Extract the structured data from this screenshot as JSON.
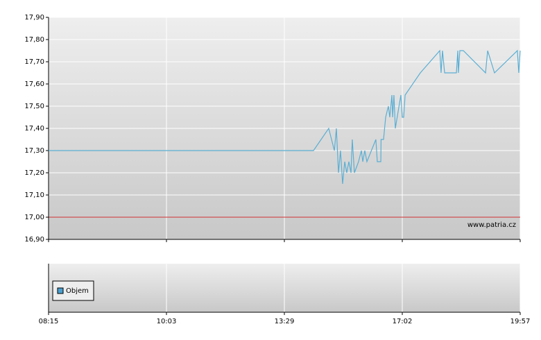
{
  "chart_data": {
    "type": "line",
    "x": [
      0,
      2.247,
      2.376,
      2.424,
      2.441,
      2.459,
      2.476,
      2.494,
      2.512,
      2.529,
      2.547,
      2.565,
      2.576,
      2.594,
      2.629,
      2.653,
      2.665,
      2.682,
      2.7,
      2.776,
      2.788,
      2.818,
      2.82,
      2.841,
      2.859,
      2.882,
      2.894,
      2.912,
      2.918,
      2.929,
      2.941,
      2.988,
      3.0,
      3.012,
      3.024,
      3.153,
      3.318,
      3.329,
      3.341,
      3.359,
      3.459,
      3.471,
      3.476,
      3.488,
      3.518,
      3.706,
      3.724,
      3.782,
      3.976,
      3.988,
      4.0
    ],
    "series": [
      {
        "color": "#5aaed3",
        "values": [
          17.3,
          17.3,
          17.4,
          17.3,
          17.4,
          17.2,
          17.3,
          17.15,
          17.25,
          17.2,
          17.25,
          17.2,
          17.35,
          17.2,
          17.25,
          17.3,
          17.25,
          17.3,
          17.25,
          17.35,
          17.25,
          17.25,
          17.35,
          17.35,
          17.45,
          17.5,
          17.45,
          17.55,
          17.45,
          17.55,
          17.4,
          17.55,
          17.45,
          17.45,
          17.55,
          17.65,
          17.75,
          17.65,
          17.75,
          17.65,
          17.65,
          17.75,
          17.65,
          17.75,
          17.75,
          17.65,
          17.75,
          17.65,
          17.75,
          17.65,
          17.75
        ]
      }
    ],
    "xlim": [
      0,
      4
    ],
    "xticks": [
      {
        "value": 0,
        "label": "08:15"
      },
      {
        "value": 1,
        "label": "10:03"
      },
      {
        "value": 2,
        "label": "13:29"
      },
      {
        "value": 3,
        "label": "17:02"
      },
      {
        "value": 4,
        "label": "19:57"
      }
    ],
    "ylim": [
      16.9,
      17.9
    ],
    "yticks": [
      {
        "value": 16.9,
        "label": "16,90"
      },
      {
        "value": 17.0,
        "label": "17,00"
      },
      {
        "value": 17.1,
        "label": "17,10"
      },
      {
        "value": 17.2,
        "label": "17,20"
      },
      {
        "value": 17.3,
        "label": "17,30"
      },
      {
        "value": 17.4,
        "label": "17,40"
      },
      {
        "value": 17.5,
        "label": "17,50"
      },
      {
        "value": 17.6,
        "label": "17,60"
      },
      {
        "value": 17.7,
        "label": "17,70"
      },
      {
        "value": 17.8,
        "label": "17,80"
      },
      {
        "value": 17.9,
        "label": "17,90"
      }
    ],
    "reference_line": {
      "value": 17.0,
      "color": "#d03030"
    },
    "annotation": "www.patria.cz",
    "volume_legend": {
      "name": "Objem",
      "color": "#4a9fd0"
    },
    "grid": true
  }
}
